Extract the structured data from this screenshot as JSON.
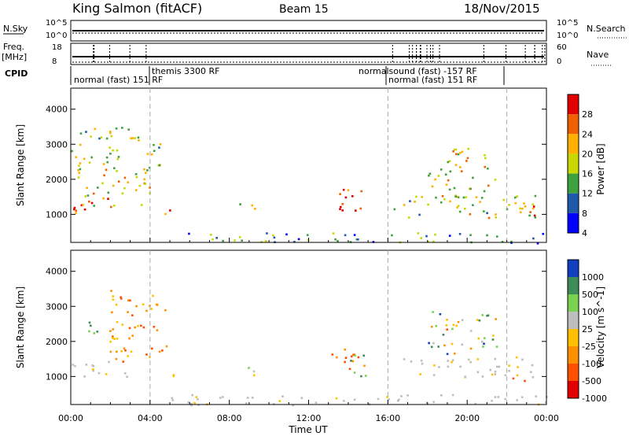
{
  "header": {
    "station": "King Salmon (fitACF)",
    "beam": "Beam 15",
    "date": "18/Nov/2015"
  },
  "summary_panel": {
    "nsky_label": "N.Sky",
    "nsky_ticks": [
      "10^5",
      "10^0"
    ],
    "nsearch_label": "N.Search",
    "nsearch_ticks": [
      "10^5",
      "10^0"
    ],
    "freq_label": "Freq.",
    "freq_unit": "[MHz]",
    "freq_ticks": [
      "18",
      "8"
    ],
    "nave_label": "Nave",
    "nave_ticks": [
      "60",
      "0"
    ],
    "cpid_label": "CPID",
    "cpid_segments": [
      {
        "label": "normal (fast)  151  RF",
        "start": 0,
        "end": 4
      },
      {
        "label": "themis 3300 RF",
        "start": 4,
        "end": 16
      },
      {
        "label": "normalsound (fast)  -157 RF",
        "start": 16,
        "end": 24
      },
      {
        "label": "normal (fast)  151  RF",
        "start": 16,
        "end": 22
      }
    ]
  },
  "chart_data": [
    {
      "type": "heatmap",
      "name": "power",
      "ylabel": "Slant Range [km]",
      "yticks": [
        1000,
        2000,
        3000,
        4000
      ],
      "ylim": [
        200,
        4600
      ],
      "xlim": [
        0,
        24
      ],
      "xticks": [
        "00:00",
        "04:00",
        "08:00",
        "12:00",
        "16:00",
        "20:00",
        "00:00"
      ],
      "colorbar": {
        "label": "Power [dB]",
        "ticks": [
          "28",
          "24",
          "20",
          "16",
          "12",
          "8",
          "4"
        ],
        "colors": [
          "#e00000",
          "#f06000",
          "#ffb000",
          "#c8d800",
          "#3da23d",
          "#1f5aa8",
          "#0000ff"
        ]
      },
      "regions": [
        {
          "t0": 0.0,
          "t1": 2.2,
          "r0": 1000,
          "r1": 1500,
          "level": 0.95
        },
        {
          "t0": 0.2,
          "t1": 4.0,
          "r0": 1200,
          "r1": 2300,
          "level": 0.6
        },
        {
          "t0": 0.0,
          "t1": 4.5,
          "r0": 2200,
          "r1": 3500,
          "level": 0.5
        },
        {
          "t0": 4.5,
          "t1": 5.4,
          "r0": 1000,
          "r1": 1300,
          "level": 0.7
        },
        {
          "t0": 8.5,
          "t1": 9.3,
          "r0": 1000,
          "r1": 1500,
          "level": 0.5
        },
        {
          "t0": 13.1,
          "t1": 14.9,
          "r0": 1000,
          "r1": 1800,
          "level": 0.85
        },
        {
          "t0": 18.0,
          "t1": 21.5,
          "r0": 1500,
          "r1": 2900,
          "level": 0.55
        },
        {
          "t0": 16.2,
          "t1": 23.5,
          "r0": 900,
          "r1": 1600,
          "level": 0.5
        },
        {
          "t0": 22.5,
          "t1": 23.6,
          "r0": 900,
          "r1": 1500,
          "level": 0.75
        },
        {
          "t0": 5.0,
          "t1": 24.0,
          "r0": 200,
          "r1": 500,
          "level": 0.3
        }
      ]
    },
    {
      "type": "heatmap",
      "name": "velocity",
      "ylabel": "Slant Range [km]",
      "yticks": [
        1000,
        2000,
        3000,
        4000
      ],
      "ylim": [
        200,
        4600
      ],
      "xlim": [
        0,
        24
      ],
      "xticks": [
        "00:00",
        "04:00",
        "08:00",
        "12:00",
        "16:00",
        "20:00",
        "00:00"
      ],
      "xlabel": "Time UT",
      "colorbar": {
        "label": "Velocity [m s^-1]",
        "ticks": [
          "1000",
          "500",
          "100",
          "25",
          "-25",
          "-100",
          "-500",
          "-1000"
        ],
        "colors": [
          "#1040c0",
          "#3d8c5a",
          "#7ad050",
          "#bebebe",
          "#ffc000",
          "#ff9000",
          "#ff5000",
          "#e00000"
        ]
      },
      "regions": [
        {
          "t0": 0.0,
          "t1": 3.0,
          "r0": 1000,
          "r1": 1500,
          "level": "ground"
        },
        {
          "t0": 1.8,
          "t1": 4.8,
          "r0": 1400,
          "r1": 3500,
          "level": "neg"
        },
        {
          "t0": 0.2,
          "t1": 1.5,
          "r0": 2100,
          "r1": 2600,
          "level": "pos"
        },
        {
          "t0": 4.5,
          "t1": 5.4,
          "r0": 1000,
          "r1": 1300,
          "level": "neg"
        },
        {
          "t0": 8.5,
          "t1": 9.3,
          "r0": 1000,
          "r1": 1500,
          "level": "mix"
        },
        {
          "t0": 13.1,
          "t1": 14.9,
          "r0": 1000,
          "r1": 1800,
          "level": "neg"
        },
        {
          "t0": 14.0,
          "t1": 15.0,
          "r0": 1000,
          "r1": 1700,
          "level": "pos"
        },
        {
          "t0": 18.0,
          "t1": 21.5,
          "r0": 1600,
          "r1": 2900,
          "level": "mix"
        },
        {
          "t0": 16.5,
          "t1": 23.5,
          "r0": 1000,
          "r1": 1600,
          "level": "ground"
        },
        {
          "t0": 22.0,
          "t1": 23.0,
          "r0": 800,
          "r1": 1300,
          "level": "neg"
        },
        {
          "t0": 5.0,
          "t1": 24.0,
          "r0": 200,
          "r1": 500,
          "level": "ground"
        }
      ]
    }
  ]
}
